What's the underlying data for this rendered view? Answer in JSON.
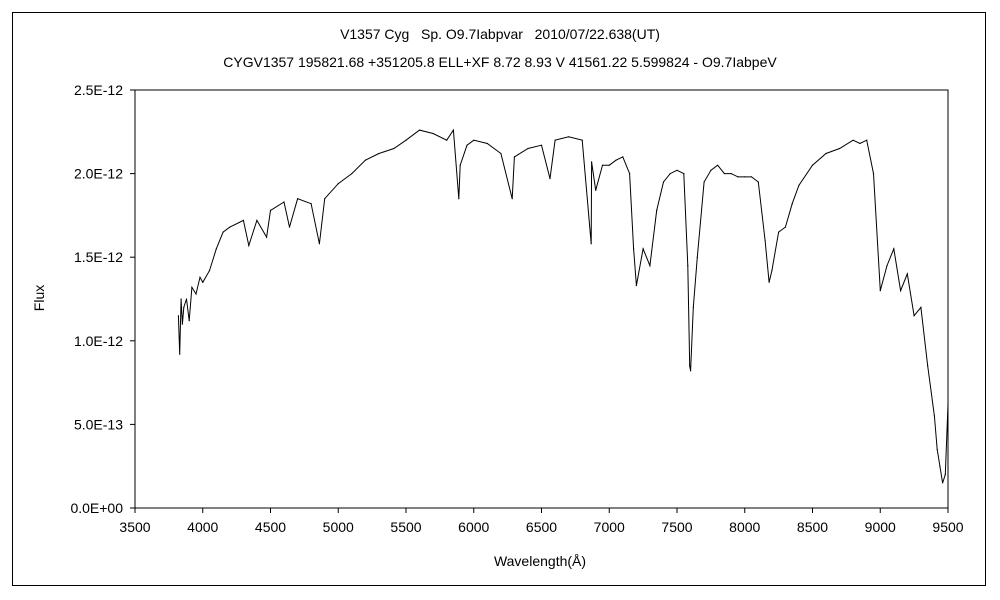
{
  "chart_data": {
    "type": "line",
    "title": "V1357 Cyg   Sp. O9.7Iabpvar   2010/07/22.638(UT)",
    "subtitle": "CYGV1357 195821.68 +351205.8 ELL+XF 8.72 8.93 V 41561.22 5.599824 - O9.7IabpeV",
    "xlabel": "Wavelength(Å)",
    "ylabel": "Flux",
    "xlim": [
      3500,
      9500
    ],
    "ylim": [
      0,
      2.5e-12
    ],
    "x_ticks": [
      "3500",
      "4000",
      "4500",
      "5000",
      "5500",
      "6000",
      "6500",
      "7000",
      "7500",
      "8000",
      "8500",
      "9000",
      "9500"
    ],
    "y_ticks": [
      "0.0E+00",
      "5.0E-13",
      "1.0E-12",
      "1.5E-12",
      "2.0E-12",
      "2.5E-12"
    ],
    "grid": false,
    "legend": "none",
    "series": [
      {
        "x": [
          3820,
          3830,
          3840,
          3850,
          3860,
          3880,
          3900,
          3920,
          3950,
          3980,
          4000,
          4050,
          4100,
          4150,
          4200,
          4300,
          4340,
          4400,
          4471,
          4500,
          4600,
          4640,
          4700,
          4800,
          4861,
          4900,
          5000,
          5100,
          5200,
          5300,
          5411,
          5500,
          5600,
          5700,
          5800,
          5850,
          5890,
          5900,
          5950,
          6000,
          6100,
          6200,
          6284,
          6300,
          6400,
          6500,
          6563,
          6600,
          6700,
          6800,
          6867,
          6870,
          6900,
          6950,
          7000,
          7050,
          7100,
          7150,
          7180,
          7200,
          7250,
          7300,
          7350,
          7400,
          7450,
          7500,
          7550,
          7580,
          7594,
          7600,
          7620,
          7650,
          7700,
          7750,
          7800,
          7850,
          7900,
          7950,
          8000,
          8050,
          8100,
          8150,
          8180,
          8200,
          8250,
          8300,
          8350,
          8400,
          8500,
          8600,
          8700,
          8800,
          8850,
          8900,
          8950,
          9000,
          9050,
          9100,
          9150,
          9200,
          9250,
          9300,
          9350,
          9400,
          9420,
          9440,
          9460,
          9480,
          9500
        ],
        "y": [
          1.15e-12,
          9.2e-13,
          1.25e-12,
          1.1e-12,
          1.2e-12,
          1.25e-12,
          1.12e-12,
          1.32e-12,
          1.28e-12,
          1.38e-12,
          1.35e-12,
          1.42e-12,
          1.55e-12,
          1.65e-12,
          1.68e-12,
          1.72e-12,
          1.57e-12,
          1.72e-12,
          1.62e-12,
          1.78e-12,
          1.83e-12,
          1.68e-12,
          1.85e-12,
          1.82e-12,
          1.58e-12,
          1.85e-12,
          1.94e-12,
          2e-12,
          2.08e-12,
          2.12e-12,
          2.15e-12,
          2.2e-12,
          2.26e-12,
          2.24e-12,
          2.2e-12,
          2.26e-12,
          1.85e-12,
          2.05e-12,
          2.17e-12,
          2.2e-12,
          2.18e-12,
          2.12e-12,
          1.85e-12,
          2.1e-12,
          2.15e-12,
          2.17e-12,
          1.97e-12,
          2.2e-12,
          2.22e-12,
          2.2e-12,
          1.58e-12,
          2.07e-12,
          1.9e-12,
          2.05e-12,
          2.05e-12,
          2.08e-12,
          2.1e-12,
          2e-12,
          1.55e-12,
          1.33e-12,
          1.55e-12,
          1.45e-12,
          1.78e-12,
          1.95e-12,
          2e-12,
          2.02e-12,
          2e-12,
          1.45e-12,
          8.5e-13,
          8.2e-13,
          1.2e-12,
          1.5e-12,
          1.95e-12,
          2.02e-12,
          2.05e-12,
          2e-12,
          2e-12,
          1.98e-12,
          1.98e-12,
          1.98e-12,
          1.95e-12,
          1.6e-12,
          1.35e-12,
          1.42e-12,
          1.65e-12,
          1.68e-12,
          1.82e-12,
          1.93e-12,
          2.05e-12,
          2.12e-12,
          2.15e-12,
          2.2e-12,
          2.18e-12,
          2.2e-12,
          2e-12,
          1.3e-12,
          1.45e-12,
          1.55e-12,
          1.3e-12,
          1.4e-12,
          1.15e-12,
          1.2e-12,
          8.5e-13,
          5.5e-13,
          3.5e-13,
          2.5e-13,
          1.5e-13,
          2e-13,
          6.2e-13
        ]
      }
    ]
  }
}
